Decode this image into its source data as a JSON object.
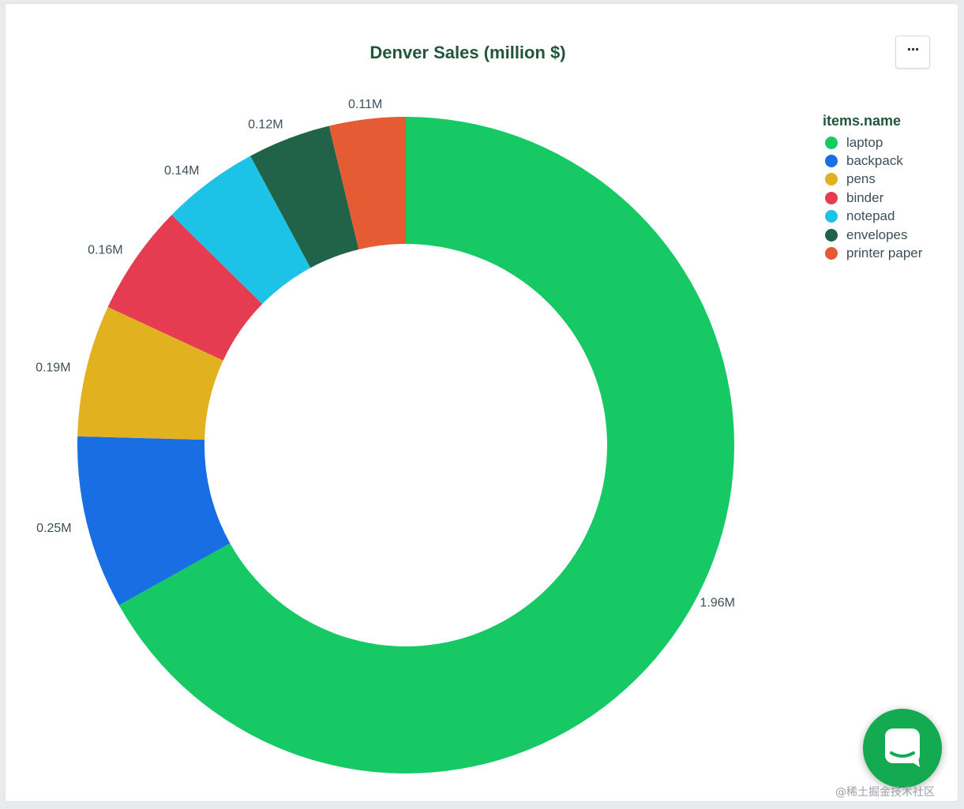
{
  "chart_data": {
    "type": "pie",
    "donut": true,
    "title": "Denver Sales (million $)",
    "legend_title": "items.name",
    "legend_position": "right",
    "slices": [
      {
        "name": "laptop",
        "value": 1.96,
        "label": "1.96M",
        "color": "#17c964"
      },
      {
        "name": "backpack",
        "value": 0.25,
        "label": "0.25M",
        "color": "#1a6ee3"
      },
      {
        "name": "pens",
        "value": 0.19,
        "label": "0.19M",
        "color": "#e1b11f"
      },
      {
        "name": "binder",
        "value": 0.16,
        "label": "0.16M",
        "color": "#e53c51"
      },
      {
        "name": "notepad",
        "value": 0.14,
        "label": "0.14M",
        "color": "#1dc3e6"
      },
      {
        "name": "envelopes",
        "value": 0.12,
        "label": "0.12M",
        "color": "#216349"
      },
      {
        "name": "printer paper",
        "value": 0.11,
        "label": "0.11M",
        "color": "#e55b34"
      }
    ]
  },
  "menu_button_label": "···",
  "watermark": "@稀土掘金技术社区"
}
